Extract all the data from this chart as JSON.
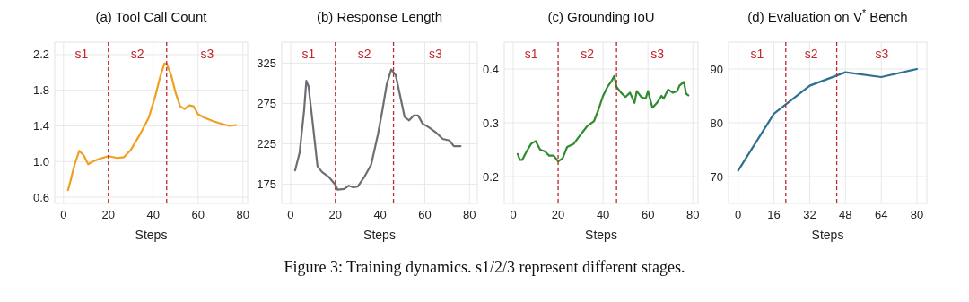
{
  "chart_data": [
    {
      "type": "line",
      "title": "(a) Tool Call Count",
      "xlabel": "Steps",
      "xlim": [
        -3.9,
        82.1
      ],
      "ylim": [
        0.53,
        2.34
      ],
      "xticks": [
        0,
        20,
        40,
        60,
        80
      ],
      "yticks": [
        {
          "value": 0.6,
          "label": "0.6"
        },
        {
          "value": 1.0,
          "label": "1.0"
        },
        {
          "value": 1.4,
          "label": "1.4"
        },
        {
          "value": 1.8,
          "label": "1.8"
        },
        {
          "value": 2.2,
          "label": "2.2"
        }
      ],
      "grid": true,
      "line_style": "solid",
      "marker": "none",
      "series": [
        {
          "color": "#f0a020",
          "x": [
            2,
            3,
            5,
            7,
            9,
            11,
            13,
            16,
            20,
            24,
            27,
            30,
            34,
            38,
            41,
            43,
            45,
            46,
            48,
            50,
            52,
            54,
            56,
            58,
            60,
            63,
            67,
            71,
            74,
            77
          ],
          "values": [
            0.68,
            0.77,
            0.97,
            1.12,
            1.07,
            0.97,
            1.0,
            1.03,
            1.06,
            1.04,
            1.05,
            1.13,
            1.3,
            1.49,
            1.74,
            1.94,
            2.1,
            2.1,
            1.97,
            1.77,
            1.62,
            1.59,
            1.63,
            1.62,
            1.53,
            1.49,
            1.45,
            1.42,
            1.4,
            1.41
          ]
        }
      ],
      "ref_lines": [
        {
          "axis": "x",
          "value": 20,
          "color": "#c0282d",
          "line_style": "dashed"
        },
        {
          "axis": "x",
          "value": 46,
          "color": "#c0282d",
          "line_style": "dashed"
        }
      ],
      "annotations": [
        "s1",
        "s2",
        "s3"
      ]
    },
    {
      "type": "line",
      "title": "(b) Response Length",
      "xlabel": "Steps",
      "xlim": [
        -4,
        83.5
      ],
      "ylim": [
        151,
        351
      ],
      "xticks": [
        0,
        20,
        40,
        60,
        80
      ],
      "yticks": [
        175,
        225,
        275,
        325
      ],
      "grid": true,
      "line_style": "solid",
      "marker": "none",
      "series": [
        {
          "color": "#6b6f73",
          "x": [
            2,
            4,
            6,
            7,
            8,
            10,
            12,
            14,
            17,
            20,
            21,
            24,
            26,
            28,
            30,
            33,
            36,
            39,
            41,
            43,
            45,
            47,
            49,
            51,
            53,
            55,
            57,
            59,
            62,
            65,
            68,
            71,
            73,
            76
          ],
          "values": [
            192,
            214,
            266,
            303,
            296,
            247,
            197,
            190,
            184,
            174,
            168,
            169,
            173,
            171,
            172,
            184,
            199,
            236,
            266,
            299,
            317,
            310,
            284,
            258,
            254,
            260,
            260,
            250,
            245,
            239,
            231,
            229,
            222,
            222
          ]
        }
      ],
      "ref_lines": [
        {
          "axis": "x",
          "value": 20,
          "color": "#c0282d",
          "line_style": "dashed"
        },
        {
          "axis": "x",
          "value": 46,
          "color": "#c0282d",
          "line_style": "dashed"
        }
      ],
      "annotations": [
        "s1",
        "s2",
        "s3"
      ]
    },
    {
      "type": "line",
      "title": "(c) Grounding IoU",
      "xlabel": "Steps",
      "xlim": [
        -4,
        82.3
      ],
      "ylim": [
        0.15,
        0.45
      ],
      "xticks": [
        0,
        20,
        40,
        60,
        80
      ],
      "yticks": [
        0.2,
        0.3,
        0.4
      ],
      "grid": true,
      "line_style": "solid",
      "marker": "none",
      "series": [
        {
          "color": "#2e8b2e",
          "x": [
            2,
            3,
            4,
            6,
            8,
            10,
            12,
            14,
            16,
            18,
            20,
            22,
            24,
            27,
            30,
            33,
            36,
            38,
            40,
            42,
            44,
            45,
            46,
            48,
            50,
            52,
            54,
            55,
            57,
            59,
            60,
            62,
            64,
            66,
            67,
            69,
            71,
            73,
            74,
            76,
            77,
            78
          ],
          "values": [
            0.242,
            0.231,
            0.231,
            0.247,
            0.261,
            0.266,
            0.25,
            0.247,
            0.239,
            0.239,
            0.228,
            0.234,
            0.255,
            0.261,
            0.278,
            0.294,
            0.303,
            0.325,
            0.35,
            0.367,
            0.379,
            0.387,
            0.367,
            0.356,
            0.348,
            0.356,
            0.337,
            0.359,
            0.348,
            0.345,
            0.359,
            0.328,
            0.337,
            0.35,
            0.345,
            0.362,
            0.356,
            0.359,
            0.369,
            0.376,
            0.354,
            0.351
          ]
        }
      ],
      "ref_lines": [
        {
          "axis": "x",
          "value": 20,
          "color": "#c0282d",
          "line_style": "dashed"
        },
        {
          "axis": "x",
          "value": 46,
          "color": "#c0282d",
          "line_style": "dashed"
        }
      ],
      "annotations": [
        "s1",
        "s2",
        "s3"
      ]
    },
    {
      "type": "line",
      "title": "(d) Evaluation on V$^{*}$ Bench",
      "xlabel": "Steps",
      "xlim": [
        -4.3,
        84.4
      ],
      "ylim": [
        65,
        95
      ],
      "xticks": [
        0,
        16,
        32,
        48,
        64,
        80
      ],
      "yticks": [
        70,
        80,
        90
      ],
      "grid": true,
      "line_style": "solid",
      "marker": "none",
      "series": [
        {
          "color": "#2f6f8f",
          "x": [
            0,
            16,
            32,
            48,
            64,
            80
          ],
          "values": [
            71.1,
            81.7,
            86.9,
            89.4,
            88.5,
            90
          ]
        }
      ],
      "ref_lines": [
        {
          "axis": "x",
          "value": 21.3,
          "color": "#c0282d",
          "line_style": "dashed"
        },
        {
          "axis": "x",
          "value": 44.1,
          "color": "#c0282d",
          "line_style": "dashed"
        }
      ],
      "annotations": [
        "s1",
        "s2",
        "s3",
        "Figure 3: Training dynamics. s1/2/3 represent different stages."
      ]
    }
  ]
}
